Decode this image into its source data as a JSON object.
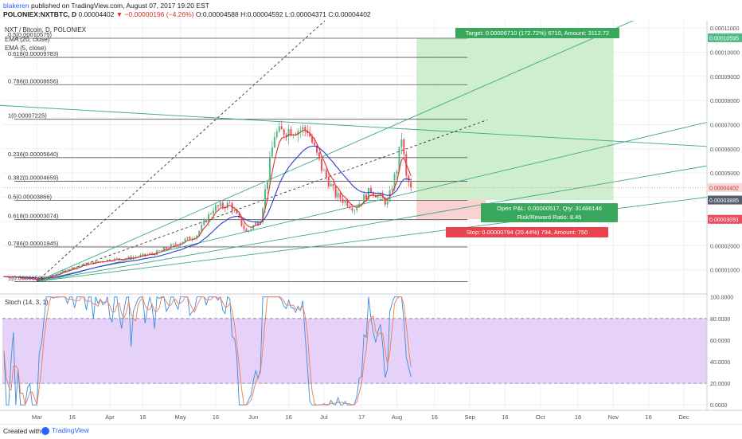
{
  "header": {
    "user": "blakeren",
    "published": "published on TradingView.com, August 07, 2017 19:20 EST",
    "ticker": "POLONIEX:NXTBTC, D",
    "price": "0.00004402",
    "change": "▼ −0.00000196 (−4.26%)",
    "ohlc": "O:0.00004588 H:0.00004592 L:0.00004371 C:0.00004402"
  },
  "legend": {
    "title": "NXT / Bitcoin, D, POLONIEX",
    "ema20": "EMA (20, close)",
    "ema5": "EMA (5, close)",
    "stoch": "Stoch (14, 3, 1)"
  },
  "footer": {
    "created": "Created with",
    "brand": "TradingView"
  },
  "colors": {
    "up": "#53b987",
    "down": "#eb4d5c",
    "ema20": "#2b3fc9",
    "ema5": "#e0312c",
    "channel": "#3aa88c",
    "target_zone": "#c7ebc4",
    "stop_zone": "#f9cdcd",
    "stoch_band": "#e3ccf7",
    "stoch_k": "#3a8de0",
    "stoch_d": "#f07b4d"
  },
  "chart_data": [
    {
      "type": "candlestick",
      "title": "NXT / Bitcoin, D, POLONIEX",
      "x_tick_labels": [
        "Mar",
        "16",
        "Apr",
        "16",
        "May",
        "16",
        "Jun",
        "16",
        "Jul",
        "17",
        "Aug",
        "16",
        "Sep",
        "16",
        "Oct",
        "16",
        "Nov",
        "16",
        "Dec"
      ],
      "y_tick_labels": [
        "0.00011000",
        "0.00010000",
        "0.00009000",
        "0.00008000",
        "0.00007000",
        "0.00006000",
        "0.00005000",
        "0.00004000",
        "0.00003000",
        "0.00002000",
        "0.00001000"
      ],
      "y_ticks": [
        0.00011,
        0.0001,
        9e-05,
        8e-05,
        7e-05,
        6e-05,
        5e-05,
        4e-05,
        3e-05,
        2e-05,
        1e-05
      ],
      "ylim": [
        0.0,
        0.000113
      ],
      "series": [
        {
          "name": "Close",
          "approx_close_path": [
            [
              "2017-02-15",
              7.2e-06
            ],
            [
              "2017-02-22",
              6.8e-06
            ],
            [
              "2017-03-01",
              5.8e-06
            ],
            [
              "2017-03-08",
              7.8e-06
            ],
            [
              "2017-03-15",
              1.05e-05
            ],
            [
              "2017-03-22",
              1.25e-05
            ],
            [
              "2017-04-01",
              1.42e-05
            ],
            [
              "2017-04-10",
              1.5e-05
            ],
            [
              "2017-04-20",
              1.68e-05
            ],
            [
              "2017-05-01",
              2.15e-05
            ],
            [
              "2017-05-08",
              2.45e-05
            ],
            [
              "2017-05-15",
              3.55e-05
            ],
            [
              "2017-05-22",
              3.72e-05
            ],
            [
              "2017-05-29",
              2.55e-05
            ],
            [
              "2017-06-04",
              3.1e-05
            ],
            [
              "2017-06-10",
              6.6e-05
            ],
            [
              "2017-06-16",
              6.8e-05
            ],
            [
              "2017-06-24",
              6.8e-05
            ],
            [
              "2017-06-30",
              5.2e-05
            ],
            [
              "2017-07-06",
              4.1e-05
            ],
            [
              "2017-07-14",
              3.55e-05
            ],
            [
              "2017-07-21",
              4.3e-05
            ],
            [
              "2017-07-28",
              3.75e-05
            ],
            [
              "2017-08-01",
              5.2e-05
            ],
            [
              "2017-08-03",
              6.5e-05
            ],
            [
              "2017-08-05",
              4.8e-05
            ],
            [
              "2017-08-07",
              4.4e-05
            ]
          ]
        },
        {
          "name": "EMA (20, close)"
        },
        {
          "name": "EMA (5, close)"
        }
      ],
      "last_price": 4.402e-05,
      "axis_price_labels": [
        "0.00010595",
        "0.00004402",
        "0.00003885",
        "0.00003091"
      ],
      "fib_levels": [
        {
          "label": "0.5(0.00010575)",
          "value": 0.00010575
        },
        {
          "label": "0.618(0.00009783)",
          "value": 9.783e-05
        },
        {
          "label": "0.786(0.00008656)",
          "value": 8.656e-05
        },
        {
          "label": "1(0.00007225)",
          "value": 7.225e-05
        },
        {
          "label": "0.236(0.00005640)",
          "value": 5.64e-05
        },
        {
          "label": "0.382(0.00004659)",
          "value": 4.659e-05
        },
        {
          "label": "0.5(0.00003866)",
          "value": 3.866e-05
        },
        {
          "label": "0.618(0.00003074)",
          "value": 3.074e-05
        },
        {
          "label": "0.786(0.00001945)",
          "value": 1.945e-05
        },
        {
          "label": "1(0.00000508)",
          "value": 5.08e-06
        }
      ],
      "position": {
        "entry": 3.885e-05,
        "target": 0.00010595,
        "stop": 3.091e-05,
        "target_label": "Target: 0.00006710 (172.72%) 6710, Amount: 3112.72",
        "open_label": "Open P&L: 0.00000517, Qty: 31486146",
        "rr_label": "Risk/Reward Ratio: 8.45",
        "stop_label": "Stop: 0.00000794 (20.44%) 794, Amount: 750"
      }
    },
    {
      "type": "line",
      "title": "Stoch (14, 3, 1)",
      "y_tick_labels": [
        "100.0000",
        "80.0000",
        "60.0000",
        "40.0000",
        "20.0000",
        "0.0000"
      ],
      "y_ticks": [
        100,
        80,
        60,
        40,
        20,
        0
      ],
      "ylim": [
        -5,
        102
      ],
      "overbought": 80,
      "oversold": 20
    }
  ]
}
